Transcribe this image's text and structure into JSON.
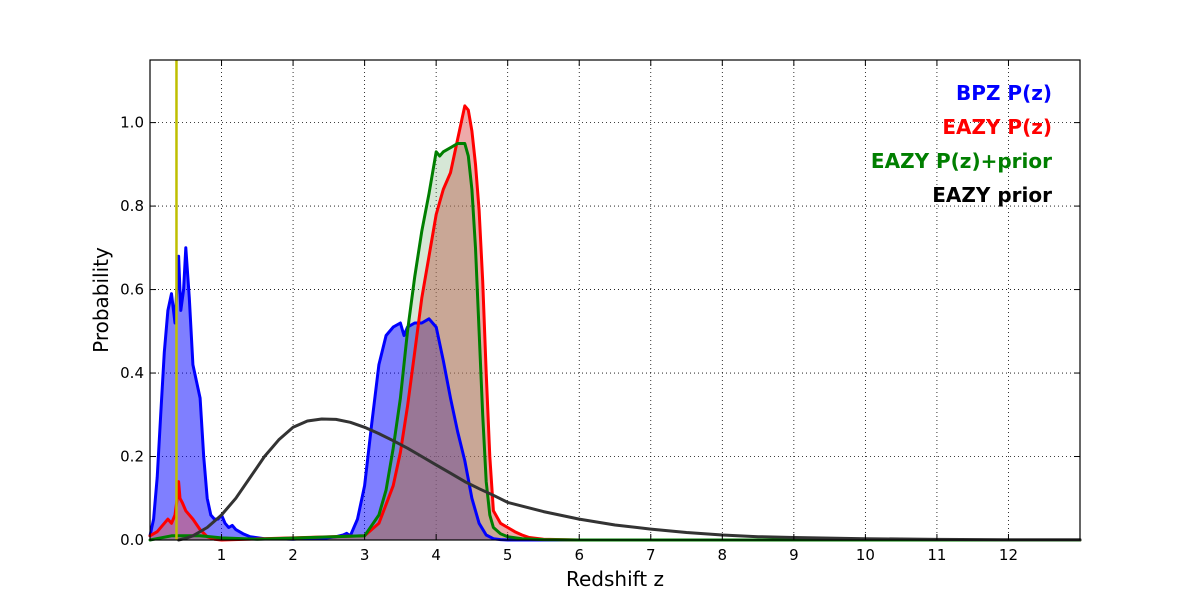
{
  "chart_data": {
    "type": "area",
    "title": "",
    "xlabel": "Redshift z",
    "ylabel": "Probability",
    "xlim": [
      0,
      13
    ],
    "ylim": [
      0,
      1.15
    ],
    "grid": true,
    "legend_position": "top-right",
    "x_ticks": [
      1,
      2,
      3,
      4,
      5,
      6,
      7,
      8,
      9,
      10,
      11,
      12
    ],
    "x_tick_labels": [
      "1",
      "2",
      "3",
      "4",
      "5",
      "6",
      "7",
      "8",
      "9",
      "10",
      "11",
      "12"
    ],
    "y_ticks": [
      0,
      0.2,
      0.4,
      0.6,
      0.8,
      1.0
    ],
    "y_tick_labels": [
      "0.0",
      "0.2",
      "0.4",
      "0.6",
      "0.8",
      "1.0"
    ],
    "marker_line": {
      "x": 0.37,
      "color": "#bfbf00"
    },
    "series": [
      {
        "name": "BPZ P(z)",
        "color": "#0000ff",
        "fill": "#0000ff",
        "fill_opacity": 0.5,
        "x": [
          0,
          0.05,
          0.1,
          0.15,
          0.2,
          0.25,
          0.3,
          0.35,
          0.4,
          0.43,
          0.47,
          0.5,
          0.55,
          0.6,
          0.65,
          0.7,
          0.75,
          0.8,
          0.85,
          0.9,
          0.95,
          1.0,
          1.05,
          1.1,
          1.15,
          1.2,
          1.3,
          1.4,
          1.6,
          1.8,
          2.0,
          2.2,
          2.4,
          2.6,
          2.7,
          2.75,
          2.8,
          2.9,
          3.0,
          3.1,
          3.2,
          3.3,
          3.4,
          3.5,
          3.55,
          3.6,
          3.7,
          3.8,
          3.9,
          4.0,
          4.1,
          4.2,
          4.3,
          4.4,
          4.5,
          4.6,
          4.7,
          4.8,
          4.9,
          5.0,
          13
        ],
        "y": [
          0.01,
          0.05,
          0.15,
          0.3,
          0.45,
          0.55,
          0.59,
          0.52,
          0.68,
          0.55,
          0.6,
          0.7,
          0.58,
          0.42,
          0.38,
          0.34,
          0.2,
          0.1,
          0.06,
          0.05,
          0.05,
          0.06,
          0.04,
          0.03,
          0.035,
          0.025,
          0.015,
          0.008,
          0.003,
          0.003,
          0.002,
          0.004,
          0.003,
          0.008,
          0.012,
          0.016,
          0.01,
          0.05,
          0.13,
          0.28,
          0.42,
          0.49,
          0.51,
          0.52,
          0.49,
          0.51,
          0.52,
          0.52,
          0.53,
          0.51,
          0.43,
          0.34,
          0.26,
          0.19,
          0.1,
          0.04,
          0.012,
          0.003,
          0.001,
          0,
          0
        ]
      },
      {
        "name": "EAZY P(z)",
        "color": "#ff0000",
        "fill": "#dd5555",
        "fill_opacity": 0.5,
        "x": [
          0,
          0.1,
          0.2,
          0.25,
          0.3,
          0.35,
          0.38,
          0.4,
          0.42,
          0.45,
          0.5,
          0.6,
          0.7,
          0.8,
          0.9,
          1.0,
          3.0,
          3.2,
          3.4,
          3.5,
          3.6,
          3.7,
          3.8,
          3.9,
          4.0,
          4.1,
          4.2,
          4.3,
          4.35,
          4.4,
          4.45,
          4.5,
          4.55,
          4.6,
          4.65,
          4.7,
          4.75,
          4.8,
          4.9,
          5.0,
          5.1,
          5.2,
          5.3,
          5.5,
          6.0,
          13
        ],
        "y": [
          0.01,
          0.02,
          0.04,
          0.05,
          0.04,
          0.06,
          0.1,
          0.14,
          0.1,
          0.09,
          0.07,
          0.05,
          0.025,
          0.008,
          0.002,
          0,
          0.01,
          0.04,
          0.13,
          0.21,
          0.32,
          0.45,
          0.58,
          0.68,
          0.78,
          0.84,
          0.88,
          0.96,
          1.0,
          1.04,
          1.03,
          0.98,
          0.9,
          0.79,
          0.62,
          0.4,
          0.2,
          0.07,
          0.04,
          0.03,
          0.02,
          0.012,
          0.006,
          0.002,
          0,
          0
        ]
      },
      {
        "name": "EAZY P(z)+prior",
        "color": "#007f00",
        "fill": "#5aa05a",
        "fill_opacity": 0.25,
        "x": [
          0,
          0.3,
          0.5,
          0.7,
          1.0,
          1.5,
          3.0,
          3.2,
          3.3,
          3.4,
          3.5,
          3.6,
          3.7,
          3.8,
          3.9,
          4.0,
          4.05,
          4.1,
          4.2,
          4.3,
          4.4,
          4.45,
          4.5,
          4.55,
          4.6,
          4.65,
          4.7,
          4.75,
          4.8,
          4.9,
          5.0,
          5.2,
          5.5,
          6.0,
          13
        ],
        "y": [
          0,
          0.01,
          0.01,
          0.01,
          0.005,
          0.002,
          0.01,
          0.06,
          0.12,
          0.22,
          0.34,
          0.5,
          0.63,
          0.74,
          0.83,
          0.93,
          0.92,
          0.93,
          0.94,
          0.95,
          0.95,
          0.92,
          0.84,
          0.7,
          0.5,
          0.3,
          0.14,
          0.06,
          0.03,
          0.015,
          0.008,
          0.003,
          0.001,
          0,
          0
        ]
      },
      {
        "name": "EAZY prior",
        "color": "#333333",
        "x": [
          0.4,
          0.5,
          0.6,
          0.8,
          1.0,
          1.2,
          1.4,
          1.6,
          1.8,
          2.0,
          2.2,
          2.4,
          2.6,
          2.8,
          3.0,
          3.2,
          3.4,
          3.6,
          3.8,
          4.0,
          4.2,
          4.4,
          4.6,
          4.8,
          5.0,
          5.5,
          6.0,
          6.5,
          7.0,
          7.5,
          8.0,
          8.5,
          9.0,
          10.0,
          11.0,
          12.0,
          13.0
        ],
        "y": [
          0,
          0.004,
          0.01,
          0.03,
          0.06,
          0.1,
          0.15,
          0.2,
          0.24,
          0.27,
          0.285,
          0.29,
          0.289,
          0.282,
          0.27,
          0.255,
          0.238,
          0.22,
          0.2,
          0.18,
          0.16,
          0.14,
          0.123,
          0.107,
          0.09,
          0.068,
          0.05,
          0.036,
          0.026,
          0.018,
          0.012,
          0.008,
          0.006,
          0.003,
          0.0015,
          0.0008,
          0.0004
        ]
      }
    ]
  }
}
